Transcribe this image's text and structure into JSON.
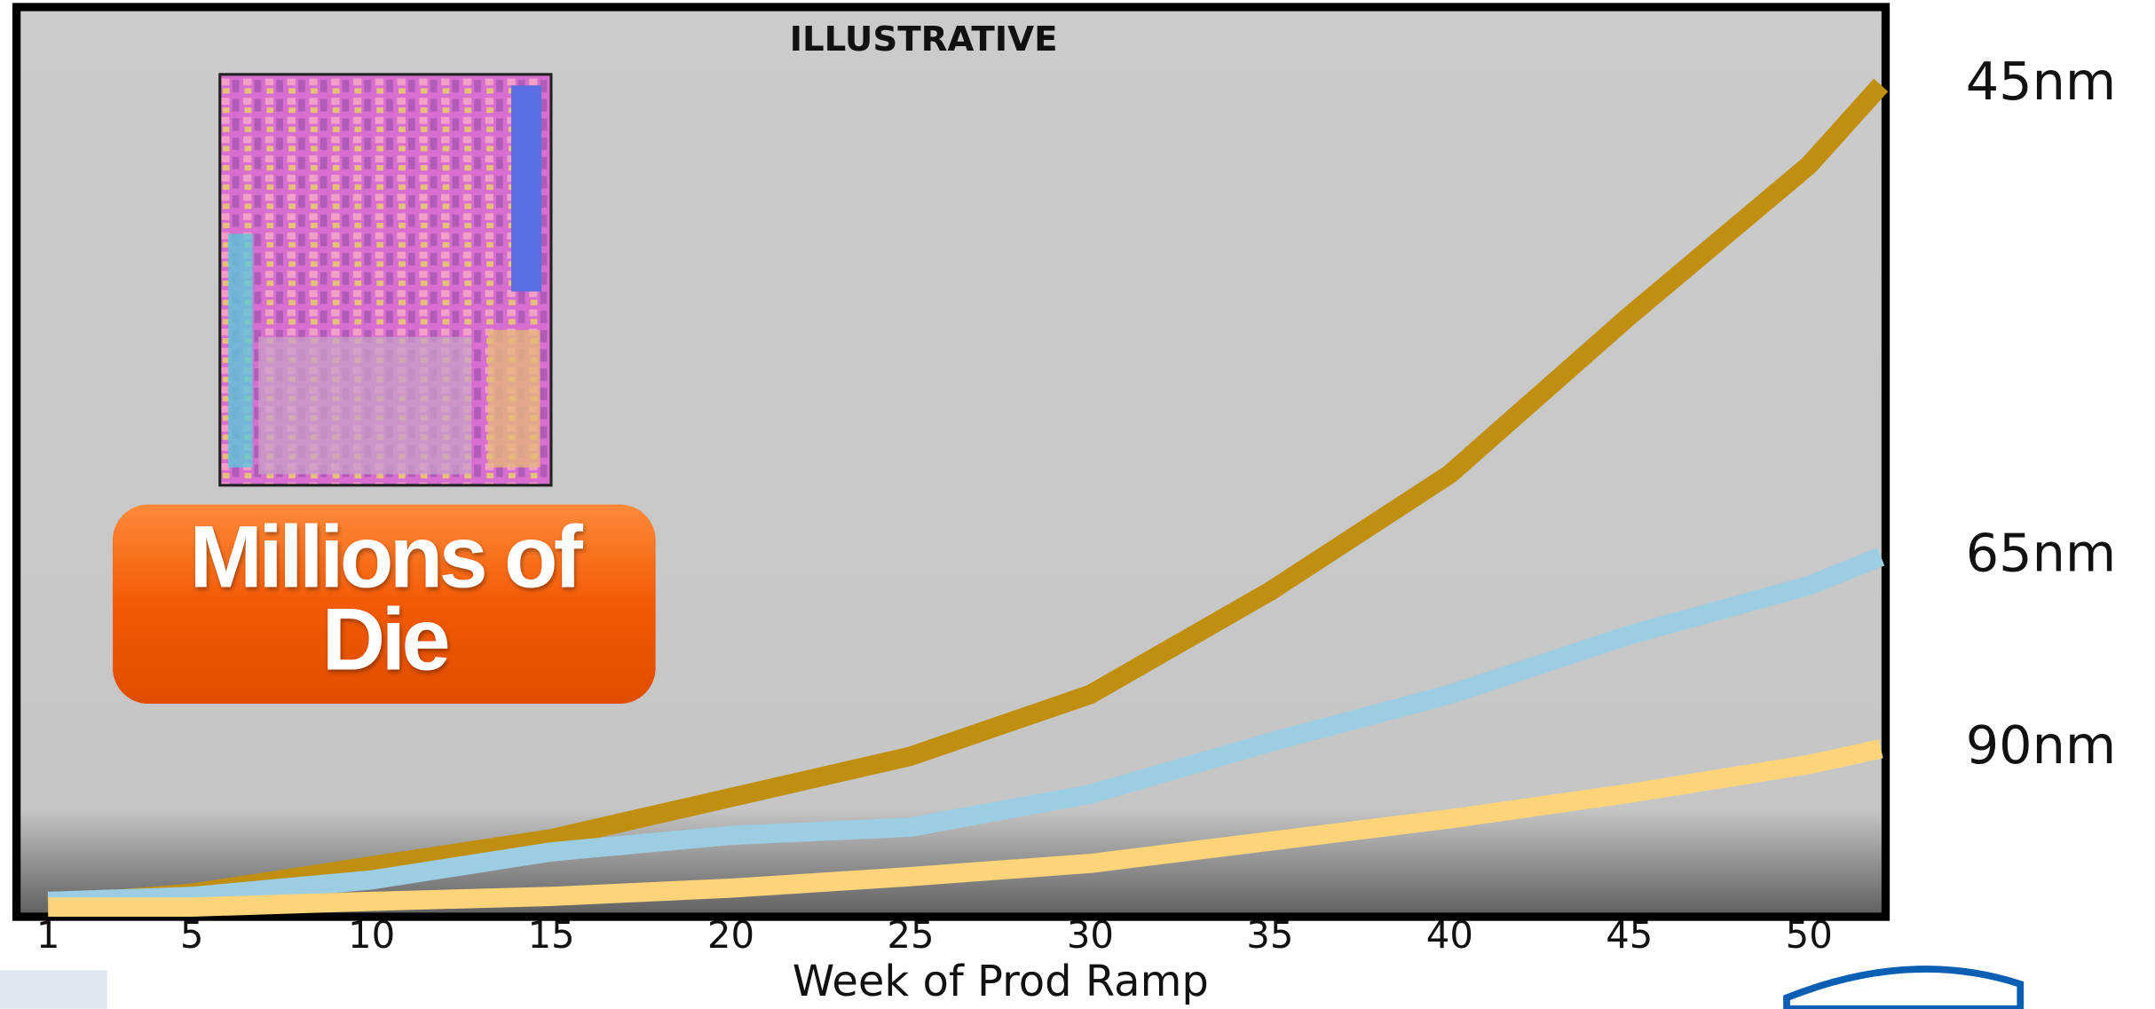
{
  "chart_data": {
    "type": "line",
    "title": "ILLUSTRATIVE",
    "x_label": "Week of Prod Ramp",
    "y_label": "Millions of Die",
    "x": [
      1,
      5,
      10,
      15,
      20,
      25,
      30,
      35,
      40,
      45,
      50,
      52
    ],
    "series": [
      {
        "name": "45nm",
        "color": "#c18f0f",
        "values": [
          0.3,
          1.7,
          5,
          8.3,
          13.3,
          18.3,
          25.8,
          38.3,
          52.5,
          71.7,
          90,
          99.7
        ]
      },
      {
        "name": "65nm",
        "color": "#9ccde3",
        "values": [
          0.7,
          1.3,
          3.3,
          6.7,
          8.7,
          9.7,
          13.7,
          20,
          25.8,
          33,
          39,
          42.5
        ]
      },
      {
        "name": "90nm",
        "color": "#fdd47a",
        "values": [
          0,
          0,
          0.7,
          1.3,
          2.3,
          3.7,
          5.3,
          8,
          10.7,
          13.8,
          17.3,
          19.2
        ]
      }
    ],
    "xlim": [
      1,
      52
    ],
    "xticks": [
      1,
      5,
      10,
      15,
      20,
      25,
      30,
      35,
      40,
      45,
      50
    ],
    "ylim": [
      0,
      100
    ]
  }
}
